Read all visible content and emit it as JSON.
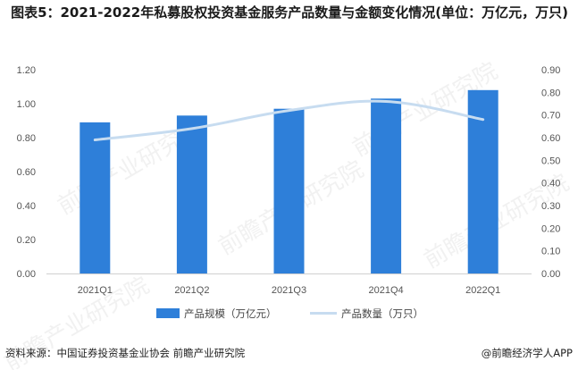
{
  "header": {
    "title": "图表5：2021-2022年私募股权投资基金服务产品数量与金额变化情况(单位：万亿元，万只)"
  },
  "footer": {
    "source": "资料来源：中国证券投资基金业协会 前瞻产业研究院",
    "brand": "@前瞻经济学人APP"
  },
  "watermark": {
    "text": "前瞻产业研究院"
  },
  "chart_data": {
    "type": "bar",
    "categories": [
      "2021Q1",
      "2021Q2",
      "2021Q3",
      "2021Q4",
      "2022Q1"
    ],
    "series": [
      {
        "name": "产品规模（万亿元）",
        "type": "bar",
        "axis": "left",
        "values": [
          0.89,
          0.93,
          0.97,
          1.03,
          1.08
        ],
        "color": "#2e7fd9"
      },
      {
        "name": "产品数量（万只）",
        "type": "line",
        "axis": "right",
        "values": [
          0.59,
          0.64,
          0.72,
          0.76,
          0.68
        ],
        "color": "#c7dcf0"
      }
    ],
    "y_left": {
      "min": 0,
      "max": 1.2,
      "ticks": [
        "0.00",
        "0.20",
        "0.40",
        "0.60",
        "0.80",
        "1.00",
        "1.20"
      ]
    },
    "y_right": {
      "min": 0,
      "max": 0.9,
      "ticks": [
        "0.00",
        "0.10",
        "0.20",
        "0.30",
        "0.40",
        "0.50",
        "0.60",
        "0.70",
        "0.80",
        "0.90"
      ]
    },
    "grid": false,
    "legend": "bottom"
  }
}
